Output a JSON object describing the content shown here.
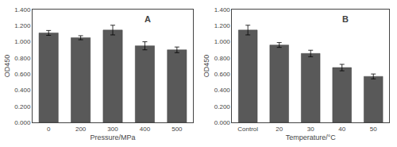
{
  "chart_data": [
    {
      "type": "bar",
      "categories": [
        "0",
        "200",
        "300",
        "400",
        "500"
      ],
      "values": [
        1.11,
        1.05,
        1.145,
        0.95,
        0.9
      ],
      "errors": [
        0.03,
        0.025,
        0.06,
        0.05,
        0.035
      ],
      "xlabel": "Pressure/MPa",
      "ylabel": "OD450",
      "annotations": [
        "A"
      ],
      "color": "#595959",
      "grid": false,
      "ylim": [
        0,
        1.4
      ],
      "yticks": [
        {
          "value": 0.0,
          "label": "0.000"
        },
        {
          "value": 0.2,
          "label": "0.200"
        },
        {
          "value": 0.4,
          "label": "0.400"
        },
        {
          "value": 0.6,
          "label": "0.600"
        },
        {
          "value": 0.8,
          "label": "0.800"
        },
        {
          "value": 1.0,
          "label": "1.000"
        },
        {
          "value": 1.2,
          "label": "1.200"
        },
        {
          "value": 1.4,
          "label": "1.400"
        }
      ]
    },
    {
      "type": "bar",
      "categories": [
        "Control",
        "20",
        "30",
        "40",
        "50"
      ],
      "values": [
        1.145,
        0.96,
        0.855,
        0.68,
        0.57
      ],
      "errors": [
        0.06,
        0.03,
        0.04,
        0.04,
        0.03
      ],
      "xlabel": "Temperature/°C",
      "ylabel": "OD450",
      "annotations": [
        "B"
      ],
      "color": "#595959",
      "grid": false,
      "ylim": [
        0,
        1.4
      ],
      "yticks": [
        {
          "value": 0.0,
          "label": "0.000"
        },
        {
          "value": 0.2,
          "label": "0.200"
        },
        {
          "value": 0.4,
          "label": "0.400"
        },
        {
          "value": 0.6,
          "label": "0.600"
        },
        {
          "value": 0.8,
          "label": "0.800"
        },
        {
          "value": 1.0,
          "label": "1.000"
        },
        {
          "value": 1.2,
          "label": "1.200"
        },
        {
          "value": 1.4,
          "label": "1.400"
        }
      ]
    }
  ]
}
